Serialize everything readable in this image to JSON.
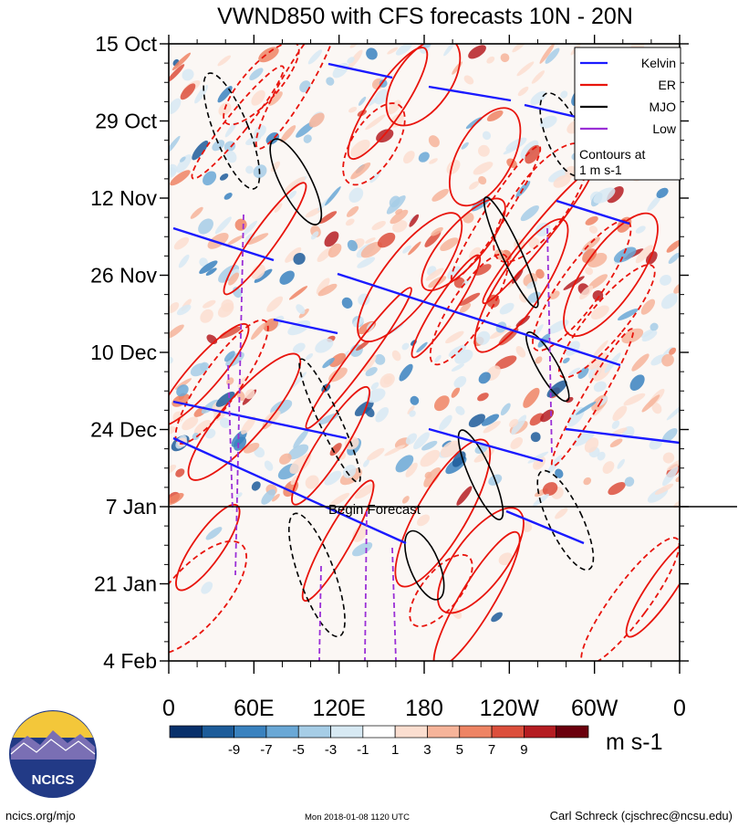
{
  "chart_data": {
    "type": "heatmap",
    "title": "VWND850 with CFS forecasts  10N - 20N",
    "y_ticks": [
      "15 Oct",
      "29 Oct",
      "12 Nov",
      "26 Nov",
      "10 Dec",
      "24 Dec",
      "7 Jan",
      "21 Jan",
      "4 Feb"
    ],
    "x_ticks": [
      "0",
      "60E",
      "120E",
      "180",
      "120W",
      "60W",
      "0"
    ],
    "x_range": [
      0,
      360
    ],
    "y_range": [
      "15 Oct",
      "4 Feb"
    ],
    "forecast_label": "Begin Forecast",
    "forecast_at": "7 Jan",
    "legend": {
      "position": "top-right",
      "entries": [
        {
          "name": "Kelvin",
          "color": "#1a1aff"
        },
        {
          "name": "ER",
          "color": "#e8140c"
        },
        {
          "name": "MJO",
          "color": "#000000"
        },
        {
          "name": "Low",
          "color": "#9a2fd6"
        }
      ],
      "note_line1": "Contours at",
      "note_line2": "1 m s-1"
    },
    "colorbar": {
      "unit": "m s-1",
      "tick_labels": [
        "-9",
        "-7",
        "-5",
        "-3",
        "-1",
        "1",
        "3",
        "5",
        "7",
        "9"
      ],
      "colors": [
        "#08306b",
        "#1d5c9a",
        "#3a82bf",
        "#6aa8d6",
        "#a6cde6",
        "#d7e9f3",
        "#ffffff",
        "#fbded0",
        "#f6b49a",
        "#ee8464",
        "#dc4f3c",
        "#b51d22",
        "#6b000d"
      ]
    }
  },
  "logo": {
    "text": "NCICS"
  },
  "footer": {
    "left": "ncics.org/mjo",
    "center": "Mon 2018-01-08 1120 UTC",
    "right": "Carl Schreck (cjschrec@ncsu.edu)"
  }
}
